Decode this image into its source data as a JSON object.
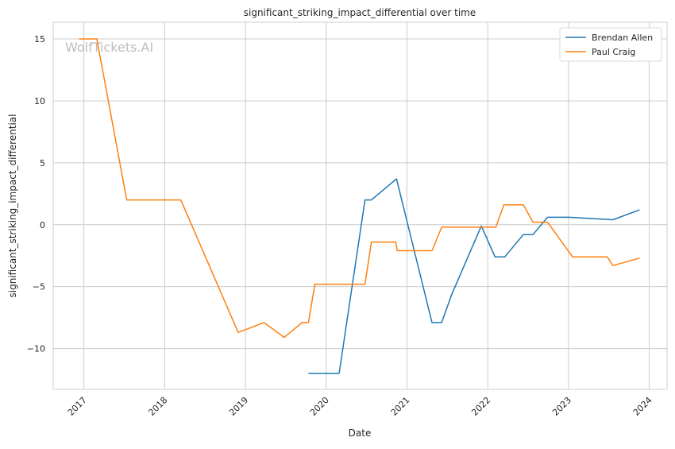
{
  "chart_data": {
    "type": "line",
    "title": "significant_striking_impact_differential over time",
    "xlabel": "Date",
    "ylabel": "significant_striking_impact_differential",
    "watermark": "WolfTickets.AI",
    "xlim": [
      2016.62,
      2024.22
    ],
    "ylim": [
      -13.3,
      16.35
    ],
    "xticks": [
      2017,
      2018,
      2019,
      2020,
      2021,
      2022,
      2023,
      2024
    ],
    "xtick_labels": [
      "2017",
      "2018",
      "2019",
      "2020",
      "2021",
      "2022",
      "2023",
      "2024"
    ],
    "yticks": [
      15,
      10,
      5,
      0,
      -5,
      -10
    ],
    "ytick_labels": [
      "15",
      "10",
      "5",
      "0",
      "−5",
      "−10"
    ],
    "grid": true,
    "legend_position": "top-right",
    "series": [
      {
        "name": "Brendan Allen",
        "color": "#1f77b4",
        "x": [
          2019.78,
          2020.16,
          2020.48,
          2020.56,
          2020.87,
          2021.31,
          2021.43,
          2021.55,
          2021.92,
          2022.09,
          2022.21,
          2022.44,
          2022.56,
          2022.74,
          2023.0,
          2023.55,
          2023.88
        ],
        "y": [
          -12,
          -12,
          2.0,
          2.0,
          3.7,
          -7.9,
          -7.9,
          -5.7,
          -0.1,
          -2.6,
          -2.6,
          -0.8,
          -0.8,
          0.6,
          0.6,
          0.4,
          1.2
        ]
      },
      {
        "name": "Paul Craig",
        "color": "#ff7f0e",
        "x": [
          2016.94,
          2017.16,
          2017.53,
          2018.2,
          2018.91,
          2019.23,
          2019.48,
          2019.7,
          2019.78,
          2019.86,
          2020.48,
          2020.56,
          2020.86,
          2020.88,
          2021.31,
          2021.43,
          2022.1,
          2022.2,
          2022.44,
          2022.56,
          2022.74,
          2023.05,
          2023.48,
          2023.55,
          2023.88
        ],
        "y": [
          15,
          15,
          2.0,
          2.0,
          -8.7,
          -7.9,
          -9.1,
          -7.9,
          -7.9,
          -4.8,
          -4.8,
          -1.4,
          -1.4,
          -2.1,
          -2.1,
          -0.2,
          -0.2,
          1.6,
          1.6,
          0.2,
          0.2,
          -2.6,
          -2.6,
          -3.3,
          -2.7
        ]
      }
    ]
  }
}
